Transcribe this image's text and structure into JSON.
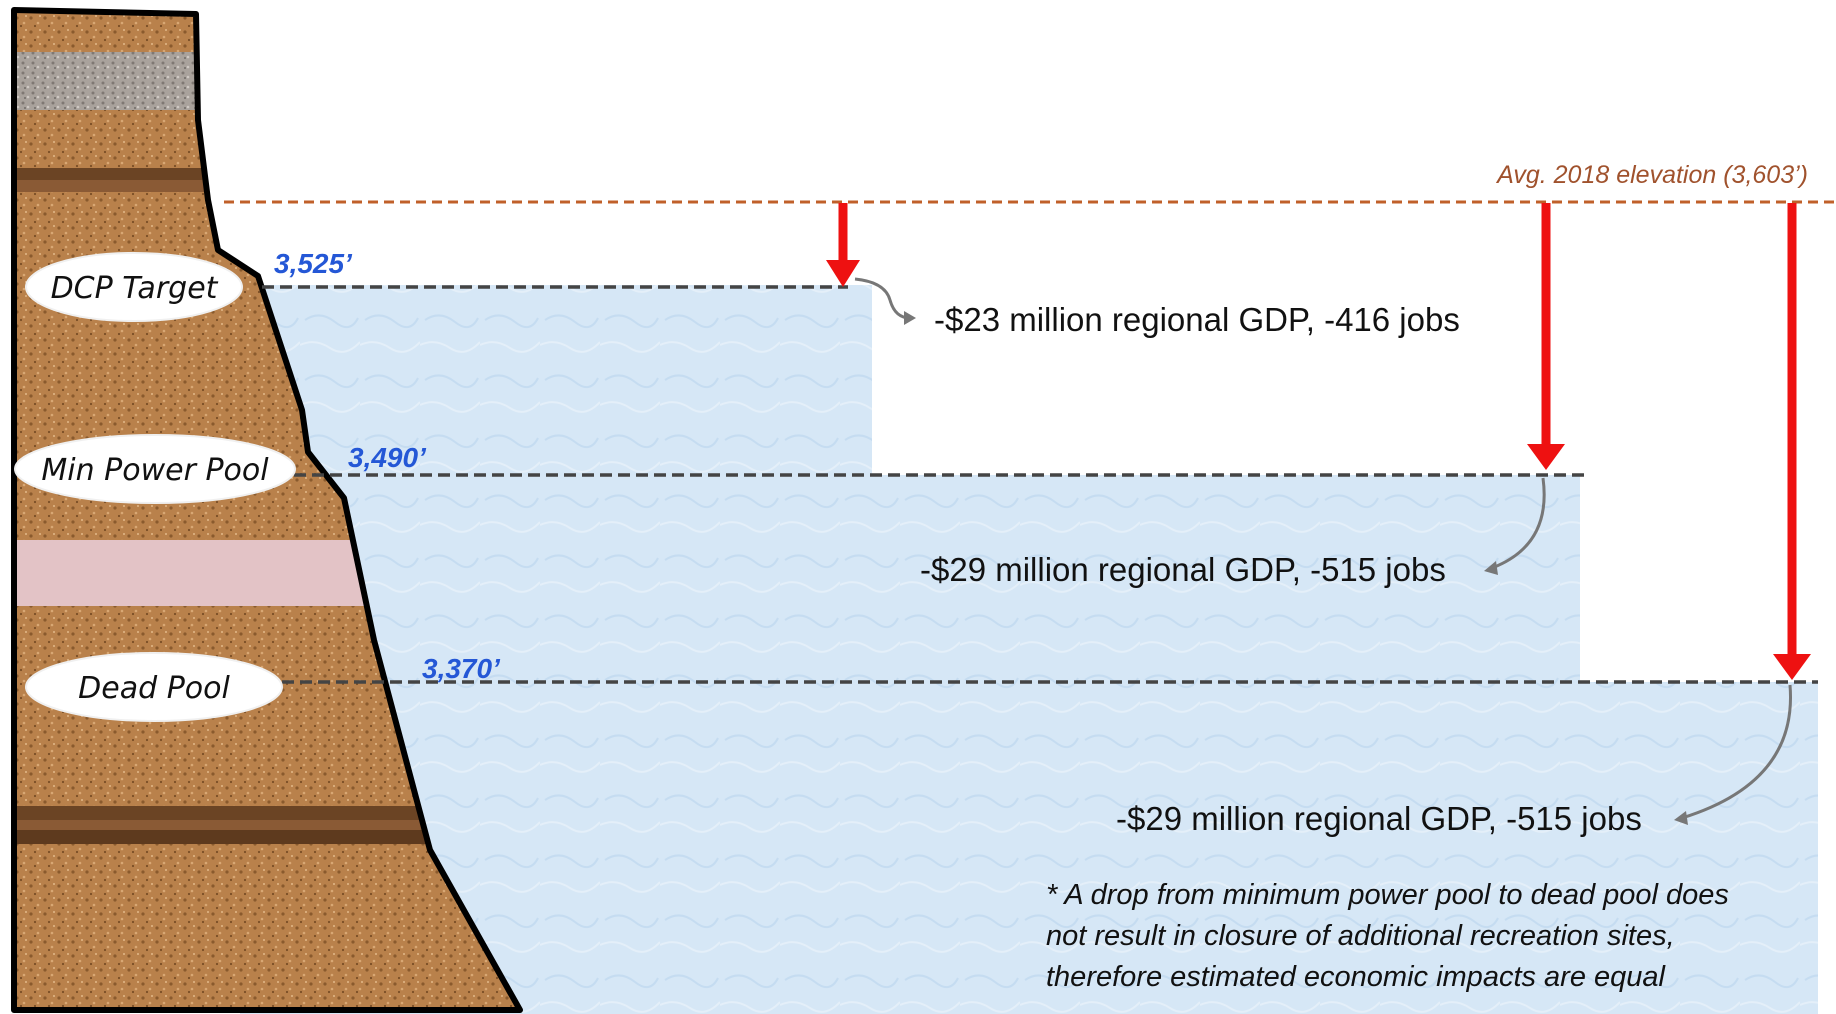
{
  "reference_line": {
    "label": "Avg. 2018 elevation (3,603’)",
    "color": "#c0602a"
  },
  "levels": [
    {
      "elevation_label": "3,525’",
      "pool_label": "DCP Target",
      "impact": "-$23 million regional GDP, -416 jobs"
    },
    {
      "elevation_label": "3,490’",
      "pool_label": "Min Power Pool",
      "impact": "-$29 million regional GDP, -515 jobs"
    },
    {
      "elevation_label": "3,370’",
      "pool_label": "Dead Pool",
      "impact": "-$29 million regional GDP, -515 jobs"
    }
  ],
  "footnote": {
    "line1": "* A drop from minimum power pool to dead pool does",
    "line2": "not result in closure of additional recreation sites,",
    "line3": "therefore estimated economic impacts are equal"
  },
  "colors": {
    "water": "#d6e7f6",
    "rock": "#b9814b",
    "arrow": "#ee1111",
    "elevation_text": "#2457d6",
    "dashed_line": "#444444",
    "connector": "#777777"
  }
}
